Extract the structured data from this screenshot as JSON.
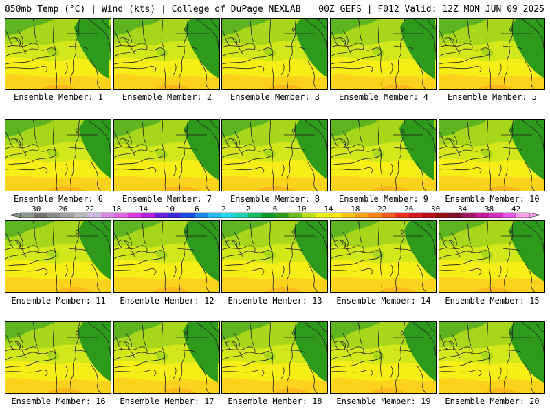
{
  "header": {
    "left": "850mb Temp (°C) | Wind (kts) | College of DuPage NEXLAB",
    "right": "00Z GEFS | F012 Valid: 12Z MON JUN 09 2025"
  },
  "members": [
    {
      "label": "Ensemble Member: 1"
    },
    {
      "label": "Ensemble Member: 2"
    },
    {
      "label": "Ensemble Member: 3"
    },
    {
      "label": "Ensemble Member: 4"
    },
    {
      "label": "Ensemble Member: 5"
    },
    {
      "label": "Ensemble Member: 6"
    },
    {
      "label": "Ensemble Member: 7"
    },
    {
      "label": "Ensemble Member: 8"
    },
    {
      "label": "Ensemble Member: 9"
    },
    {
      "label": "Ensemble Member: 10"
    },
    {
      "label": "Ensemble Member: 11"
    },
    {
      "label": "Ensemble Member: 12"
    },
    {
      "label": "Ensemble Member: 13"
    },
    {
      "label": "Ensemble Member: 14"
    },
    {
      "label": "Ensemble Member: 15"
    },
    {
      "label": "Ensemble Member: 16"
    },
    {
      "label": "Ensemble Member: 17"
    },
    {
      "label": "Ensemble Member: 18"
    },
    {
      "label": "Ensemble Member: 19"
    },
    {
      "label": "Ensemble Member: 20"
    }
  ],
  "colorbar": {
    "ticks": [
      "−30",
      "−26",
      "−22",
      "−18",
      "−14",
      "−10",
      "−6",
      "−2",
      "2",
      "6",
      "10",
      "14",
      "18",
      "22",
      "26",
      "30",
      "34",
      "38",
      "42"
    ],
    "colors": [
      "#8e978f",
      "#717672",
      "#888e8b",
      "#9ea5a2",
      "#b4bbb9",
      "#cab9e3",
      "#da8ae6",
      "#e066e8",
      "#d93ae2",
      "#b523d9",
      "#6a1fd9",
      "#3b2bd3",
      "#1d4be0",
      "#1d86ef",
      "#25b9f5",
      "#27d5e8",
      "#22d0b3",
      "#18b968",
      "#109a2e",
      "#329c1b",
      "#6dbb1c",
      "#bfe11d",
      "#eaef1a",
      "#fde619",
      "#fec11a",
      "#fca21b",
      "#f9841e",
      "#f55b1e",
      "#e9321e",
      "#d41a1f",
      "#b70f1b",
      "#941016",
      "#7e1032",
      "#a11a68",
      "#c41a9a",
      "#d22fc0",
      "#ec56e4",
      "#f9a0ee"
    ]
  },
  "map_colors": {
    "dark_green": "#2e9a1c",
    "green": "#5db320",
    "light_green": "#a8d61b",
    "yellow_green": "#d3e81a",
    "yellow": "#f7ee17",
    "gold": "#fcd31c",
    "orange": "#fbb71c"
  }
}
